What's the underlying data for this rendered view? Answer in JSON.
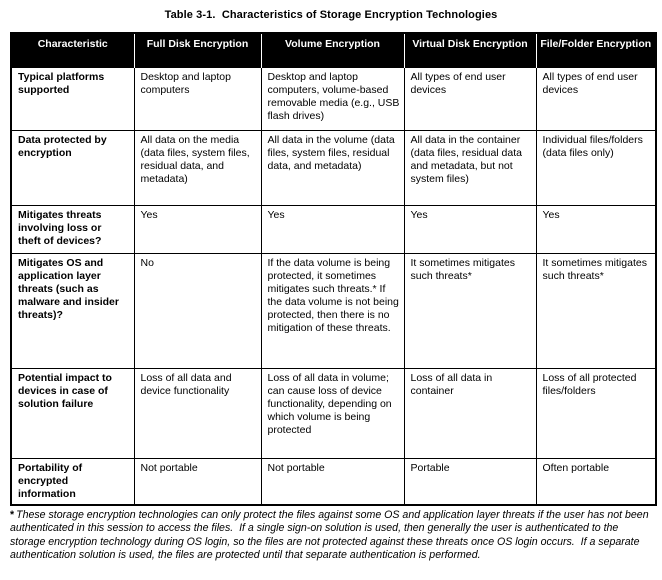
{
  "title": "Table 3-1.  Characteristics of Storage Encryption Technologies",
  "colors": {
    "header_bg": "#000000",
    "header_text": "#ffffff",
    "body_bg": "#ffffff",
    "border": "#000000",
    "text": "#000000"
  },
  "table": {
    "columns": [
      "Characteristic",
      "Full Disk Encryption",
      "Volume Encryption",
      "Virtual Disk Encryption",
      "File/Folder Encryption"
    ],
    "rows": [
      {
        "label": "Typical platforms supported",
        "cells": [
          "Desktop and laptop computers",
          "Desktop and laptop computers, volume-based removable media (e.g., USB flash drives)",
          "All types of end user devices",
          "All types of end user devices"
        ]
      },
      {
        "label": "Data protected by encryption",
        "cells": [
          "All data on the media (data files, system files, residual data, and metadata)",
          "All data in the volume (data files, system files, residual data, and metadata)",
          "All data in the container (data files, residual data and metadata, but not system files)",
          "Individual files/folders (data files only)"
        ]
      },
      {
        "label": "Mitigates threats involving loss or theft of devices?",
        "cells": [
          "Yes",
          "Yes",
          "Yes",
          "Yes"
        ]
      },
      {
        "label": "Mitigates OS and application layer threats (such as malware and insider threats)?",
        "cells": [
          "No",
          "If the data volume is being protected, it sometimes mitigates such threats.* If the data volume is not being protected, then there is no mitigation of these threats.",
          "It sometimes mitigates such threats*",
          "It sometimes mitigates such threats*"
        ]
      },
      {
        "label": "Potential impact to devices in case of solution failure",
        "cells": [
          "Loss of all data and device functionality",
          "Loss of all data in volume; can cause loss of device functionality, depending on which volume is being protected",
          "Loss of all data in container",
          "Loss of all protected files/folders"
        ]
      },
      {
        "label": "Portability of encrypted information",
        "cells": [
          "Not portable",
          "Not portable",
          "Portable",
          "Often portable"
        ]
      }
    ]
  },
  "footnote": {
    "marker": "*",
    "text": "These storage encryption technologies can only protect the files against some OS and application layer threats if the user has not been authenticated in this session to access the files.  If a single sign-on solution is used, then generally the user is authenticated to the storage encryption technology during OS login, so the files are not protected against these threats once OS login occurs.  If a separate authentication solution is used, the files are protected until that separate authentication is performed."
  }
}
